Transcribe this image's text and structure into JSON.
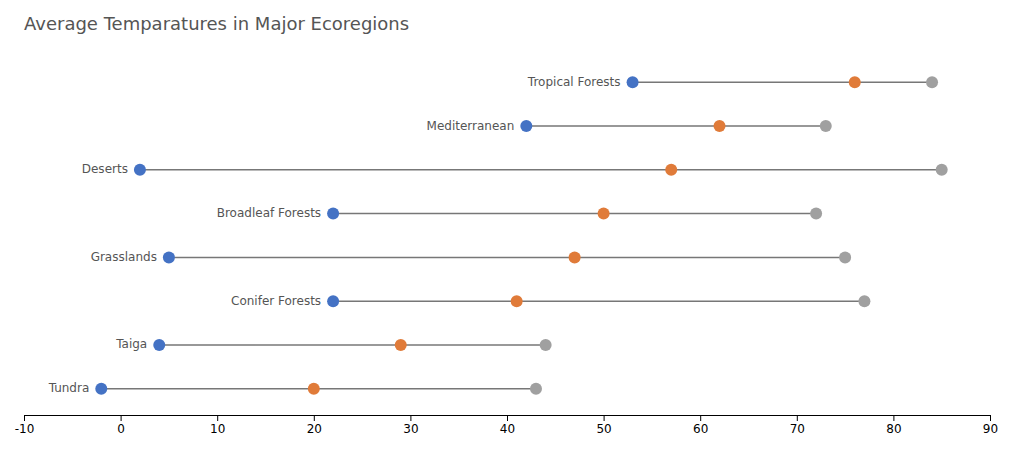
{
  "chart_data": {
    "type": "dumbbell",
    "title": "Average Temparatures in Major Ecoregions",
    "categories": [
      "Tundra",
      "Taiga",
      "Conifer Forests",
      "Grasslands",
      "Broadleaf Forests",
      "Deserts",
      "Mediterranean",
      "Tropical Forests"
    ],
    "series": [
      {
        "color": "#4472C4",
        "values": [
          -2,
          4,
          22,
          5,
          22,
          2,
          42,
          53
        ]
      },
      {
        "color": "#E07B39",
        "values": [
          20,
          29,
          41,
          47,
          50,
          57,
          62,
          76
        ]
      },
      {
        "color": "#A0A0A0",
        "values": [
          43,
          44,
          77,
          75,
          72,
          85,
          73,
          84
        ]
      }
    ],
    "xlim": [
      -10,
      90
    ],
    "xticks": [
      -10,
      0,
      10,
      20,
      30,
      40,
      50,
      60,
      70,
      80,
      90
    ],
    "grid": false,
    "tick_labels": "x"
  }
}
